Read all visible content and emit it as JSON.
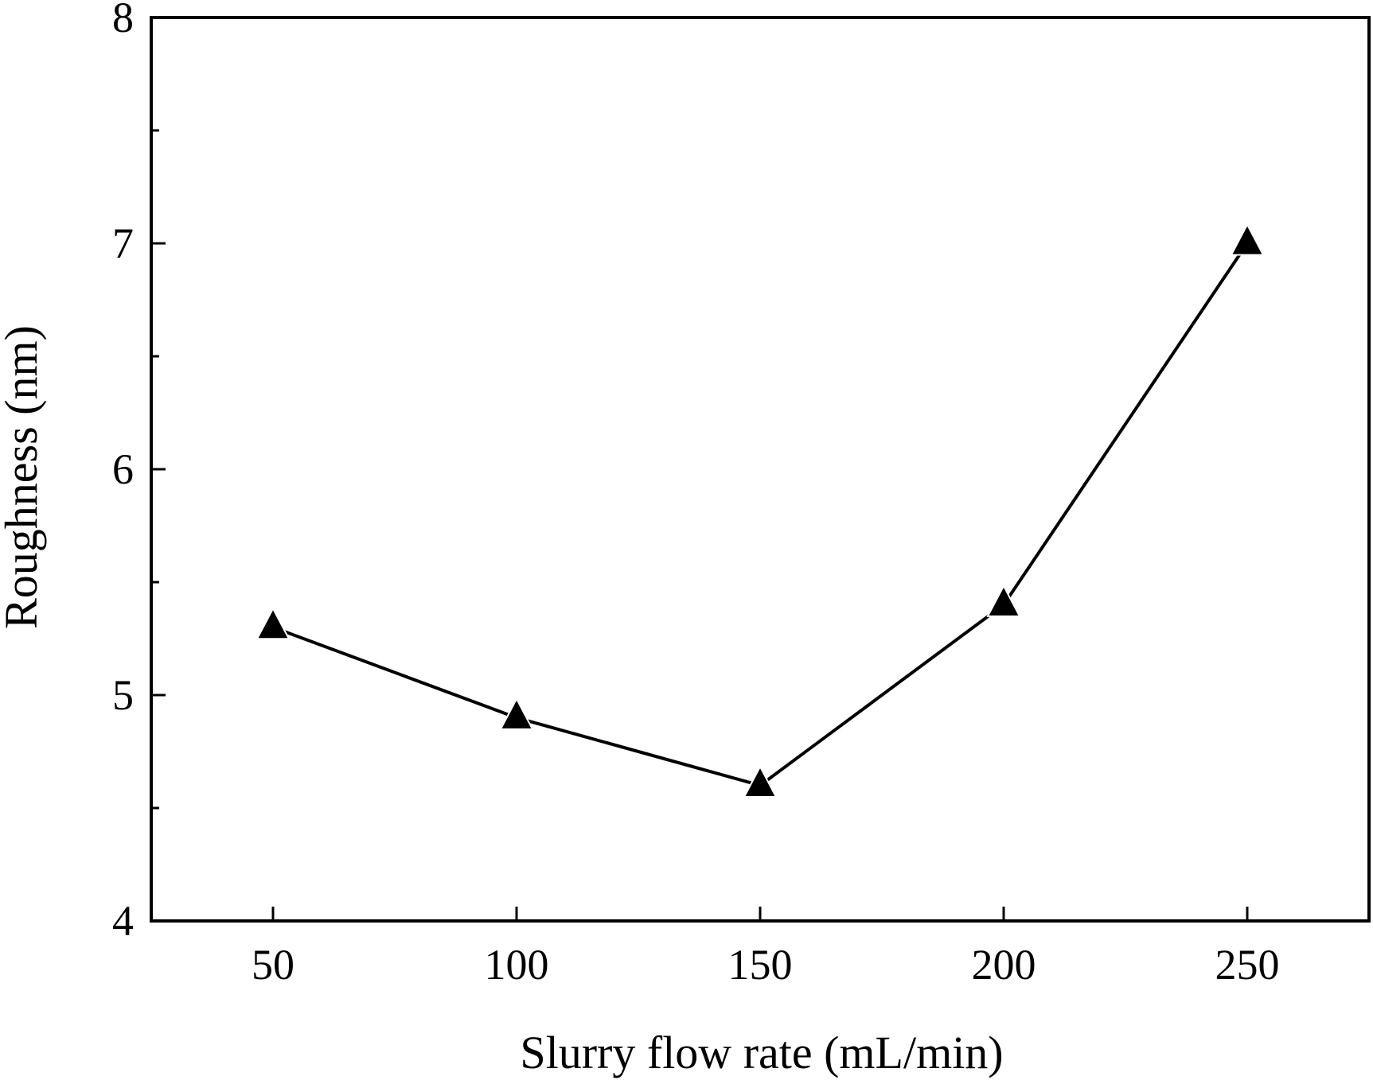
{
  "chart_data": {
    "type": "line",
    "xlabel": "Slurry flow rate (mL/min)",
    "ylabel": "Roughness (nm)",
    "xlim": [
      25,
      275
    ],
    "ylim": [
      4,
      8
    ],
    "x_ticks": [
      50,
      100,
      150,
      200,
      250
    ],
    "y_ticks": [
      4,
      5,
      6,
      7,
      8
    ],
    "y_minor_ticks": [
      4.5,
      5.5,
      6.5,
      7.5
    ],
    "grid": false,
    "marker": "filled-triangle",
    "colors": {
      "line": "#000000",
      "marker": "#000000"
    },
    "series": [
      {
        "x": [
          50,
          100,
          150,
          200,
          250
        ],
        "values": [
          5.3,
          4.9,
          4.6,
          5.4,
          7.0
        ]
      }
    ]
  }
}
